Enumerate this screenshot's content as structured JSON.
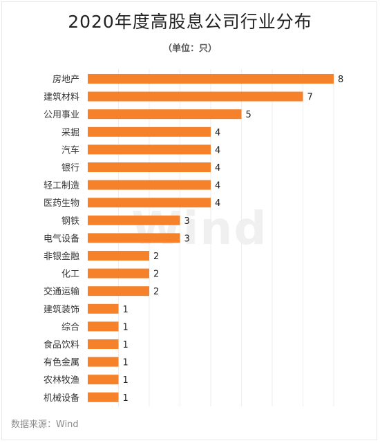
{
  "title": "2020年度高股息公司行业分布",
  "subtitle": "（单位：只）",
  "watermark": "Wind",
  "source": "数据来源：Wind",
  "colors": {
    "bar": "#F5822A",
    "grid": "#eeeeee",
    "text": "#333333"
  },
  "chart_data": {
    "type": "bar",
    "orientation": "horizontal",
    "title": "2020年度高股息公司行业分布",
    "unit": "（单位：只）",
    "categories": [
      "房地产",
      "建筑材料",
      "公用事业",
      "采掘",
      "汽车",
      "银行",
      "轻工制造",
      "医药生物",
      "钢铁",
      "电气设备",
      "非银金融",
      "化工",
      "交通运输",
      "建筑装饰",
      "综合",
      "食品饮料",
      "有色金属",
      "农林牧渔",
      "机械设备"
    ],
    "values": [
      8,
      7,
      5,
      4,
      4,
      4,
      4,
      4,
      3,
      3,
      2,
      2,
      2,
      1,
      1,
      1,
      1,
      1,
      1
    ],
    "xlim": [
      0,
      8
    ],
    "grid": true,
    "legend": "none"
  }
}
